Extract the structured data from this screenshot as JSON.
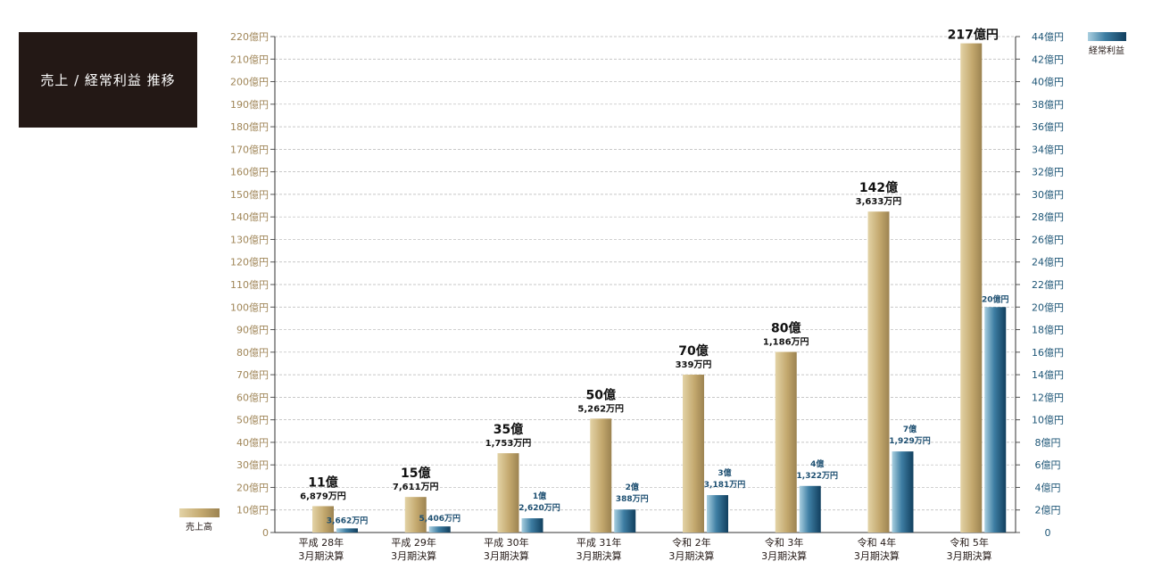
{
  "title": "売上 / 経常利益 推移",
  "colors": {
    "sales": "#c3a86e",
    "profit": "#1d5a7e",
    "title_bg": "#231815",
    "left_axis": "#a08658",
    "right_axis": "#1d5576"
  },
  "chart_data": {
    "type": "bar",
    "categories": [
      [
        "平成 28年",
        "3月期決算"
      ],
      [
        "平成 29年",
        "3月期決算"
      ],
      [
        "平成 30年",
        "3月期決算"
      ],
      [
        "平成 31年",
        "3月期決算"
      ],
      [
        "令和 2年",
        "3月期決算"
      ],
      [
        "令和 3年",
        "3月期決算"
      ],
      [
        "令和 4年",
        "3月期決算"
      ],
      [
        "令和 5年",
        "3月期決算"
      ]
    ],
    "series": [
      {
        "name": "売上高",
        "axis": "left",
        "unit": "億円",
        "values": [
          11.6879,
          15.7611,
          35.1753,
          50.5262,
          70.0339,
          80.1186,
          142.3633,
          217
        ],
        "labels": [
          [
            "11億",
            "6,879万円"
          ],
          [
            "15億",
            "7,611万円"
          ],
          [
            "35億",
            "1,753万円"
          ],
          [
            "50億",
            "5,262万円"
          ],
          [
            "70億",
            "339万円"
          ],
          [
            "80億",
            "1,186万円"
          ],
          [
            "142億",
            "3,633万円"
          ],
          [
            "217億円"
          ]
        ]
      },
      {
        "name": "経常利益",
        "axis": "right",
        "unit": "億円",
        "values": [
          0.3662,
          0.5406,
          1.262,
          2.0388,
          3.3181,
          4.1322,
          7.1929,
          20
        ],
        "labels": [
          [
            "3,662万円"
          ],
          [
            "5,406万円"
          ],
          [
            "1億",
            "2,620万円"
          ],
          [
            "2億",
            "388万円"
          ],
          [
            "3億",
            "3,181万円"
          ],
          [
            "4億",
            "1,322万円"
          ],
          [
            "7億",
            "1,929万円"
          ],
          [
            "20億円"
          ]
        ]
      }
    ],
    "y_left": {
      "min": 0,
      "max": 220,
      "step": 10,
      "zero_label": "0",
      "tick_suffix": "億円"
    },
    "y_right": {
      "min": 0,
      "max": 44,
      "step": 2,
      "zero_label": "0",
      "tick_suffix": "億円"
    },
    "grid": true,
    "legend": [
      {
        "name": "売上高",
        "placement": "bottom-left"
      },
      {
        "name": "経常利益",
        "placement": "top-right"
      }
    ]
  }
}
